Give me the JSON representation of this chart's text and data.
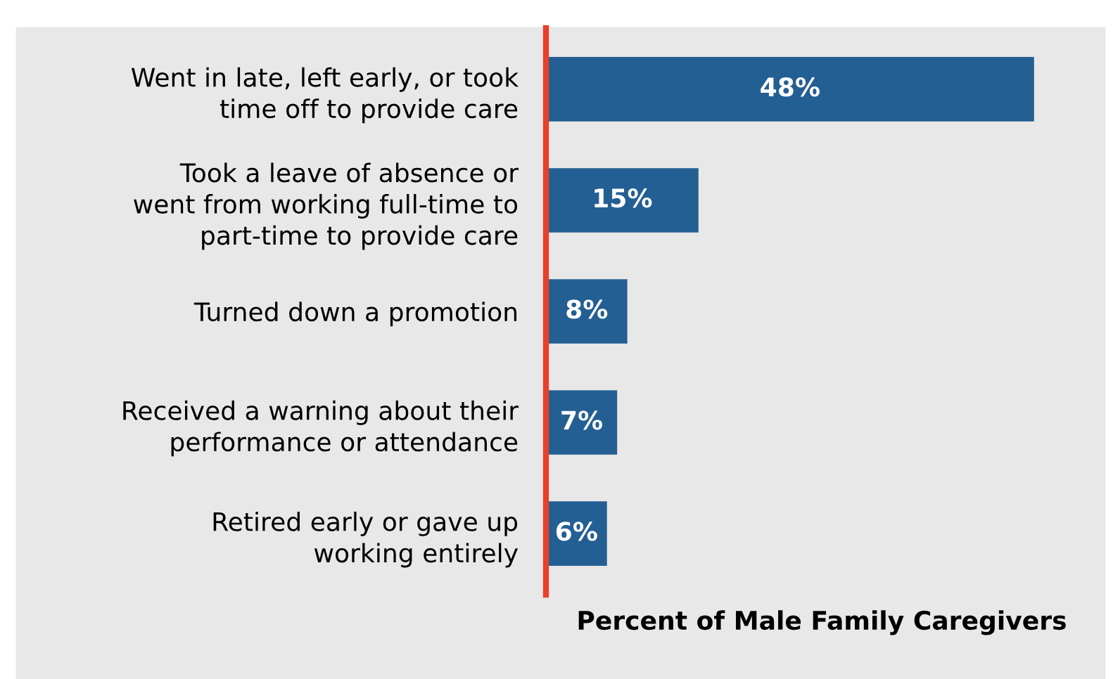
{
  "chart_data": {
    "type": "bar",
    "orientation": "horizontal",
    "categories": [
      "Went in late, left early, or took\ntime off to provide care",
      "Took a leave of absence or\nwent from working full-time to\npart-time to provide care",
      "Turned down a promotion",
      "Received a warning about their\nperformance or attendance",
      "Retired early or gave up\nworking entirely"
    ],
    "values": [
      48,
      15,
      8,
      7,
      6
    ],
    "value_labels": [
      "48%",
      "15%",
      "8%",
      "7%",
      "6%"
    ],
    "color": "#245f93",
    "xlabel": "Percent of Male Family Caregivers",
    "grid": false,
    "legend": false
  }
}
